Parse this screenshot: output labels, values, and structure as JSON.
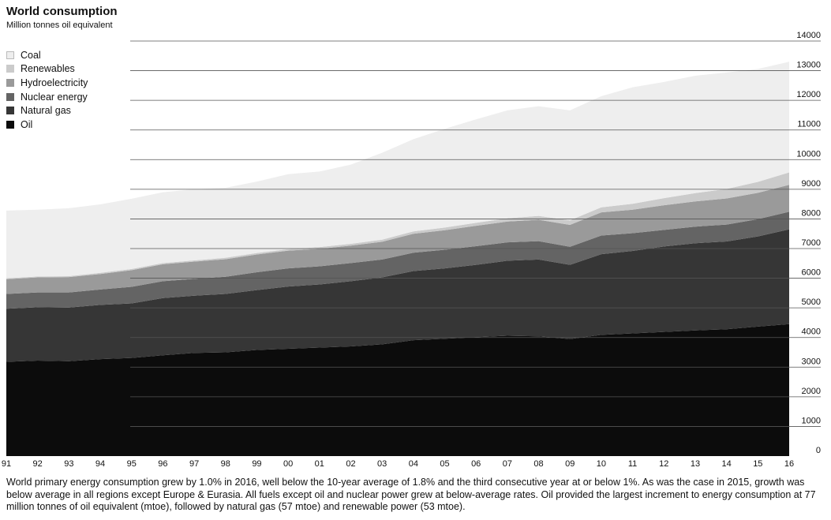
{
  "title": "World consumption",
  "subtitle": "Million tonnes oil equivalent",
  "caption": "World primary energy consumption grew by 1.0% in 2016, well below the 10-year average of 1.8% and the third consecutive year at or below 1%. As was the case in 2015, growth was below average in all regions except Europe & Eurasia. All fuels except oil and nuclear power grew at below-average rates. Oil provided the largest increment to energy consumption at 77 million tonnes of oil equivalent (mtoe), followed by natural gas (57 mtoe) and renewable power (53 mtoe).",
  "colors": {
    "Coal": "#eeeeee",
    "Renewables": "#cbcbcb",
    "Hydroelectricity": "#9a9a9a",
    "Nuclear energy": "#646464",
    "Natural gas": "#363636",
    "Oil": "#0c0c0c",
    "gridline": "#555555"
  },
  "chart_data": {
    "type": "area",
    "stacked": true,
    "x": [
      "91",
      "92",
      "93",
      "94",
      "95",
      "96",
      "97",
      "98",
      "99",
      "00",
      "01",
      "02",
      "03",
      "04",
      "05",
      "06",
      "07",
      "08",
      "09",
      "10",
      "11",
      "12",
      "13",
      "14",
      "15",
      "16"
    ],
    "ylim": [
      0,
      14000
    ],
    "yticks": [
      0,
      1000,
      2000,
      3000,
      4000,
      5000,
      6000,
      7000,
      8000,
      9000,
      10000,
      11000,
      12000,
      13000,
      14000
    ],
    "y_axis_side": "right",
    "grid": true,
    "legend_position": "top-left",
    "legend_order": [
      "Coal",
      "Renewables",
      "Hydroelectricity",
      "Nuclear energy",
      "Natural gas",
      "Oil"
    ],
    "series": [
      {
        "name": "Oil",
        "values": [
          3180,
          3220,
          3200,
          3270,
          3310,
          3400,
          3480,
          3500,
          3580,
          3620,
          3660,
          3700,
          3770,
          3910,
          3960,
          4010,
          4060,
          4040,
          3950,
          4090,
          4140,
          4190,
          4240,
          4280,
          4370,
          4450
        ]
      },
      {
        "name": "Natural gas",
        "values": [
          1790,
          1800,
          1810,
          1830,
          1840,
          1930,
          1930,
          1970,
          2020,
          2100,
          2130,
          2200,
          2260,
          2330,
          2370,
          2440,
          2530,
          2590,
          2500,
          2720,
          2780,
          2880,
          2940,
          2960,
          3040,
          3200
        ]
      },
      {
        "name": "Nuclear energy",
        "values": [
          500,
          500,
          510,
          520,
          560,
          570,
          570,
          580,
          600,
          610,
          610,
          610,
          600,
          620,
          630,
          630,
          620,
          620,
          610,
          630,
          600,
          560,
          560,
          570,
          580,
          590
        ]
      },
      {
        "name": "Hydroelectricity",
        "values": [
          500,
          510,
          520,
          520,
          560,
          570,
          580,
          590,
          600,
          600,
          590,
          590,
          600,
          640,
          660,
          690,
          700,
          720,
          740,
          780,
          790,
          830,
          850,
          880,
          890,
          910
        ]
      },
      {
        "name": "Renewables",
        "values": [
          30,
          30,
          30,
          40,
          40,
          40,
          40,
          50,
          50,
          50,
          60,
          60,
          70,
          80,
          90,
          100,
          110,
          130,
          150,
          170,
          200,
          240,
          280,
          320,
          370,
          420
        ]
      },
      {
        "name": "Coal",
        "values": [
          2280,
          2250,
          2290,
          2310,
          2370,
          2390,
          2400,
          2360,
          2410,
          2530,
          2550,
          2670,
          2930,
          3110,
          3330,
          3490,
          3640,
          3700,
          3710,
          3750,
          3930,
          3920,
          3960,
          3930,
          3810,
          3730
        ]
      }
    ]
  }
}
